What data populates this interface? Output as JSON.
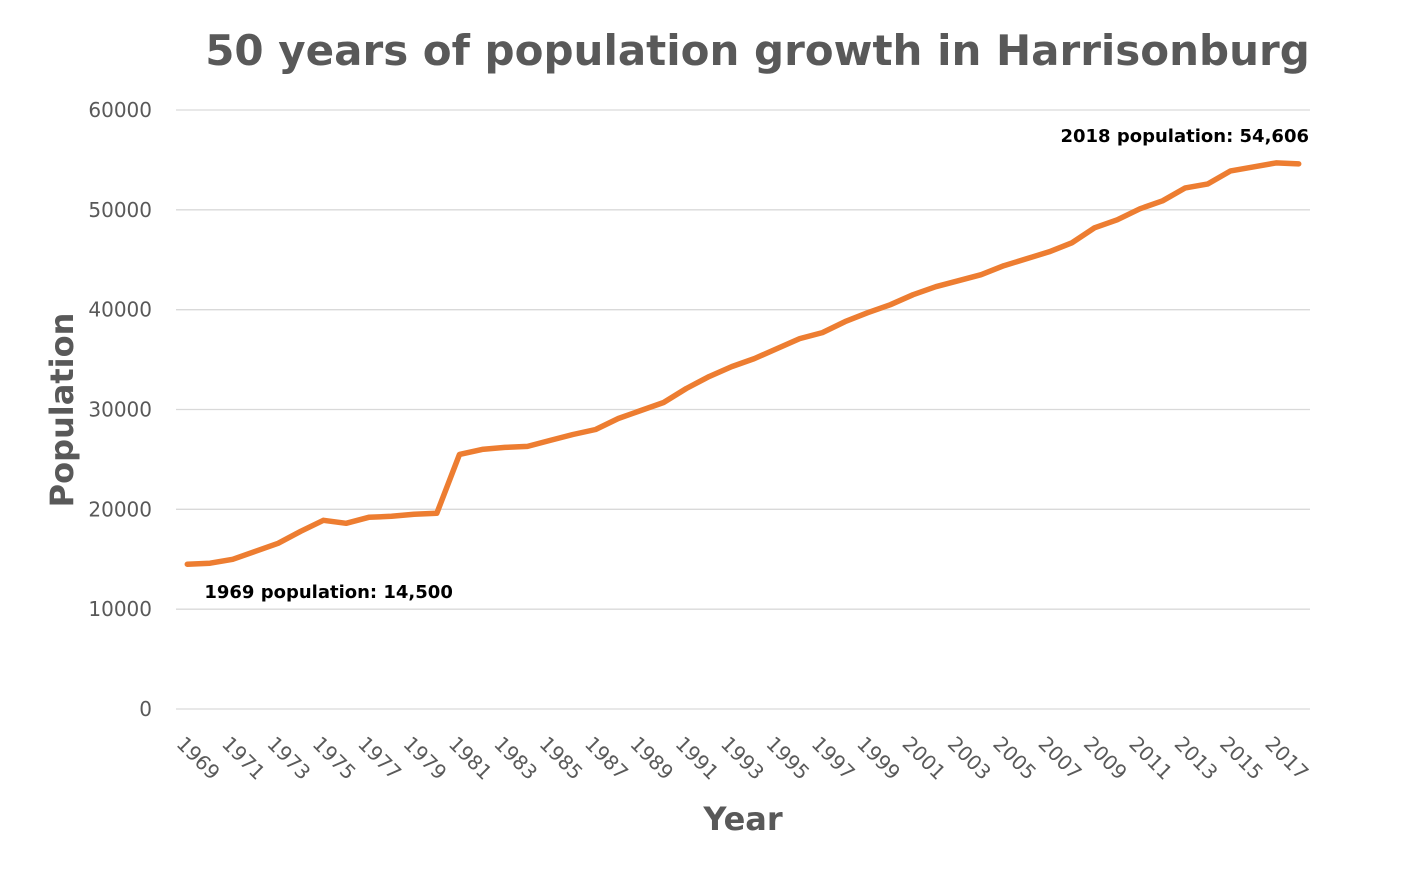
{
  "chart_data": {
    "type": "line",
    "title": "50 years of population growth in Harrisonburg",
    "xlabel": "Year",
    "ylabel": "Population",
    "ylim": [
      0,
      60000
    ],
    "yticks": [
      0,
      10000,
      20000,
      30000,
      40000,
      50000,
      60000
    ],
    "grid": true,
    "legend": "none",
    "tick_labels": [
      "1969",
      "1971",
      "1973",
      "1975",
      "1977",
      "1979",
      "1981",
      "1983",
      "1985",
      "1987",
      "1989",
      "1991",
      "1993",
      "1995",
      "1997",
      "1999",
      "2001",
      "2003",
      "2005",
      "2007",
      "2009",
      "2011",
      "2013",
      "2015",
      "2017"
    ],
    "series": [
      {
        "name": "Population",
        "color": "#ED7D31",
        "x": [
          1969,
          1970,
          1971,
          1972,
          1973,
          1974,
          1975,
          1976,
          1977,
          1978,
          1979,
          1980,
          1981,
          1982,
          1983,
          1984,
          1985,
          1986,
          1987,
          1988,
          1989,
          1990,
          1991,
          1992,
          1993,
          1994,
          1995,
          1996,
          1997,
          1998,
          1999,
          2000,
          2001,
          2002,
          2003,
          2004,
          2005,
          2006,
          2007,
          2008,
          2009,
          2010,
          2011,
          2012,
          2013,
          2014,
          2015,
          2016,
          2017,
          2018
        ],
        "values": [
          14500,
          14600,
          15000,
          15800,
          16600,
          17800,
          18900,
          18600,
          19200,
          19300,
          19500,
          19600,
          25500,
          26000,
          26200,
          26300,
          26900,
          27500,
          28000,
          29100,
          29900,
          30700,
          32100,
          33300,
          34300,
          35100,
          36100,
          37100,
          37700,
          38800,
          39700,
          40500,
          41500,
          42300,
          42900,
          43500,
          44400,
          45100,
          45800,
          46700,
          48200,
          49000,
          50100,
          50900,
          52200,
          52600,
          53900,
          54300,
          54700,
          54606
        ]
      }
    ],
    "annotations": [
      {
        "text": "1969 population: 14,500",
        "x": 1969,
        "y": 14500
      },
      {
        "text": "2018 population: 54,606",
        "x": 2018,
        "y": 54606
      }
    ]
  }
}
